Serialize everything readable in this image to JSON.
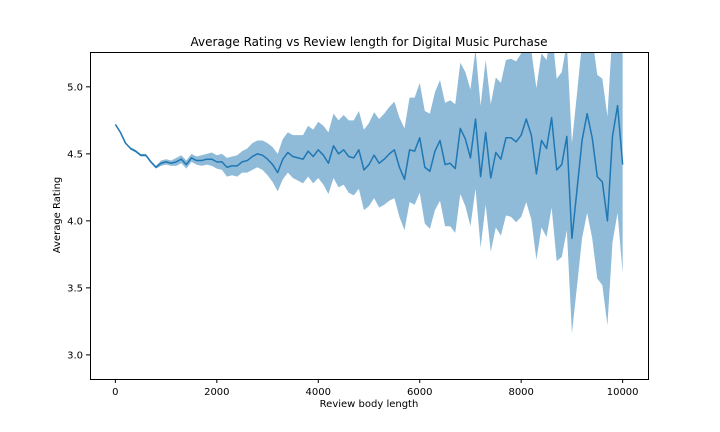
{
  "chart_data": {
    "type": "line",
    "title": "Average Rating vs Review length for Digital Music Purchase",
    "xlabel": "Review body length",
    "ylabel": "Average Rating",
    "xlim": [
      -500,
      10500
    ],
    "ylim": [
      2.82,
      5.26
    ],
    "xticks": [
      0,
      2000,
      4000,
      6000,
      8000,
      10000
    ],
    "yticks": [
      3.0,
      3.5,
      4.0,
      4.5,
      5.0
    ],
    "xtick_labels": [
      "0",
      "2000",
      "4000",
      "6000",
      "8000",
      "10000"
    ],
    "ytick_labels": [
      "3.0",
      "3.5",
      "4.0",
      "4.5",
      "5.0"
    ],
    "grid": false,
    "legend": "none",
    "colors": {
      "line": "#1f77b4",
      "band": "#1f77b4"
    },
    "series": [
      {
        "x": [
          0,
          100,
          200,
          300,
          400,
          500,
          600,
          700,
          800,
          900,
          1000,
          1100,
          1200,
          1300,
          1400,
          1500,
          1600,
          1700,
          1800,
          1900,
          2000,
          2100,
          2200,
          2300,
          2400,
          2500,
          2600,
          2700,
          2800,
          2900,
          3000,
          3100,
          3200,
          3300,
          3400,
          3500,
          3600,
          3700,
          3800,
          3900,
          4000,
          4100,
          4200,
          4300,
          4400,
          4500,
          4600,
          4700,
          4800,
          4900,
          5000,
          5100,
          5200,
          5300,
          5400,
          5500,
          5600,
          5700,
          5800,
          5900,
          6000,
          6100,
          6200,
          6300,
          6400,
          6500,
          6600,
          6700,
          6800,
          6900,
          7000,
          7100,
          7200,
          7300,
          7400,
          7500,
          7600,
          7700,
          7800,
          7900,
          8000,
          8100,
          8200,
          8300,
          8400,
          8500,
          8600,
          8700,
          8800,
          8900,
          9000,
          9100,
          9200,
          9300,
          9400,
          9500,
          9600,
          9700,
          9800,
          9900,
          10000
        ],
        "y": [
          4.72,
          4.66,
          4.58,
          4.54,
          4.52,
          4.49,
          4.49,
          4.44,
          4.4,
          4.43,
          4.44,
          4.43,
          4.44,
          4.46,
          4.42,
          4.47,
          4.45,
          4.45,
          4.46,
          4.46,
          4.44,
          4.44,
          4.4,
          4.41,
          4.41,
          4.44,
          4.45,
          4.48,
          4.5,
          4.49,
          4.46,
          4.42,
          4.36,
          4.46,
          4.51,
          4.48,
          4.47,
          4.46,
          4.52,
          4.48,
          4.53,
          4.49,
          4.43,
          4.56,
          4.5,
          4.53,
          4.48,
          4.47,
          4.53,
          4.38,
          4.42,
          4.49,
          4.43,
          4.46,
          4.5,
          4.53,
          4.4,
          4.31,
          4.53,
          4.52,
          4.62,
          4.4,
          4.37,
          4.52,
          4.6,
          4.42,
          4.43,
          4.39,
          4.69,
          4.61,
          4.47,
          4.76,
          4.33,
          4.66,
          4.32,
          4.51,
          4.46,
          4.62,
          4.62,
          4.59,
          4.64,
          4.76,
          4.64,
          4.35,
          4.6,
          4.54,
          4.77,
          4.38,
          4.42,
          4.63,
          3.87,
          4.23,
          4.6,
          4.8,
          4.62,
          4.33,
          4.29,
          4.0,
          4.63,
          4.86,
          4.42
        ],
        "lower": [
          4.72,
          4.66,
          4.58,
          4.53,
          4.51,
          4.48,
          4.48,
          4.43,
          4.39,
          4.41,
          4.42,
          4.41,
          4.41,
          4.43,
          4.39,
          4.44,
          4.42,
          4.41,
          4.42,
          4.41,
          4.39,
          4.38,
          4.33,
          4.34,
          4.33,
          4.36,
          4.36,
          4.38,
          4.4,
          4.38,
          4.34,
          4.29,
          4.22,
          4.31,
          4.36,
          4.32,
          4.3,
          4.28,
          4.33,
          4.28,
          4.32,
          4.27,
          4.2,
          4.32,
          4.25,
          4.27,
          4.21,
          4.19,
          4.24,
          4.08,
          4.11,
          4.17,
          4.1,
          4.12,
          4.15,
          4.17,
          4.03,
          3.93,
          4.14,
          4.12,
          4.21,
          3.98,
          3.94,
          4.08,
          4.15,
          3.96,
          3.96,
          3.91,
          4.2,
          4.11,
          3.96,
          4.24,
          3.8,
          4.12,
          3.77,
          3.95,
          3.89,
          4.04,
          4.03,
          3.99,
          4.03,
          4.14,
          4.01,
          3.71,
          3.95,
          3.88,
          4.1,
          3.7,
          3.73,
          3.93,
          3.16,
          3.51,
          3.87,
          4.06,
          3.87,
          3.57,
          3.52,
          3.22,
          3.84,
          4.06,
          3.61
        ],
        "upper": [
          4.72,
          4.66,
          4.58,
          4.55,
          4.53,
          4.5,
          4.5,
          4.45,
          4.41,
          4.45,
          4.46,
          4.45,
          4.47,
          4.49,
          4.45,
          4.5,
          4.48,
          4.49,
          4.5,
          4.51,
          4.49,
          4.5,
          4.47,
          4.48,
          4.49,
          4.52,
          4.54,
          4.58,
          4.6,
          4.6,
          4.58,
          4.55,
          4.5,
          4.61,
          4.66,
          4.64,
          4.64,
          4.64,
          4.71,
          4.68,
          4.74,
          4.71,
          4.66,
          4.8,
          4.75,
          4.79,
          4.75,
          4.75,
          4.82,
          4.68,
          4.73,
          4.81,
          4.76,
          4.8,
          4.85,
          4.89,
          4.77,
          4.69,
          4.92,
          4.92,
          5.03,
          4.82,
          4.8,
          4.96,
          5.05,
          4.88,
          4.9,
          4.87,
          5.18,
          5.11,
          4.98,
          5.28,
          4.86,
          5.2,
          4.87,
          5.07,
          5.03,
          5.2,
          5.21,
          5.19,
          5.25,
          5.38,
          5.27,
          4.99,
          5.25,
          5.2,
          5.44,
          5.06,
          5.11,
          5.33,
          4.58,
          4.95,
          5.33,
          5.54,
          5.37,
          5.09,
          5.06,
          4.78,
          5.42,
          5.66,
          5.23
        ]
      }
    ]
  }
}
